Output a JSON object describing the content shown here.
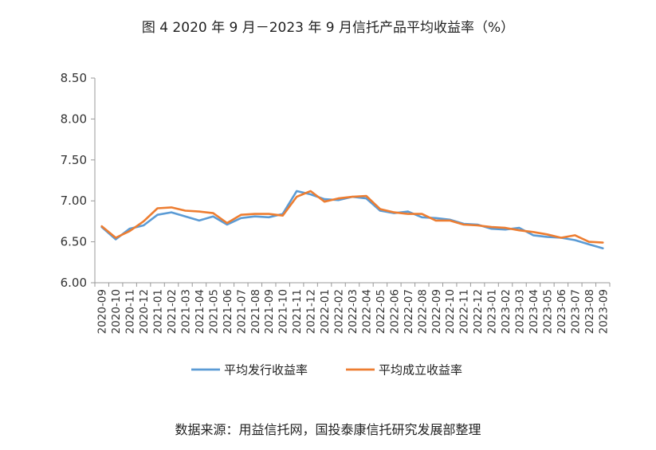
{
  "title": "图 4   2020 年 9 月－2023 年 9 月信托产品平均收益率（%）",
  "source_note": "数据来源：用益信托网，国投泰康信托研究发展部整理",
  "colors": {
    "series_1": "#5b9bd5",
    "series_2": "#ed7d31",
    "axis": "#999999",
    "tick_text": "#333333"
  },
  "chart_data": {
    "type": "line",
    "title": "图 4   2020 年 9 月－2023 年 9 月信托产品平均收益率（%）",
    "xlabel": "",
    "ylabel": "",
    "ylim": [
      6.0,
      8.5
    ],
    "yticks": [
      "6.00",
      "6.50",
      "7.00",
      "7.50",
      "8.00",
      "8.50"
    ],
    "grid": false,
    "legend_position": "bottom",
    "x": [
      "2020-09",
      "2020-10",
      "2020-11",
      "2020-12",
      "2021-01",
      "2021-02",
      "2021-03",
      "2021-04",
      "2021-05",
      "2021-06",
      "2021-07",
      "2021-08",
      "2021-09",
      "2021-10",
      "2021-11",
      "2021-12",
      "2022-01",
      "2022-02",
      "2022-03",
      "2022-04",
      "2022-05",
      "2022-06",
      "2022-07",
      "2022-08",
      "2022-09",
      "2022-10",
      "2022-11",
      "2022-12",
      "2023-01",
      "2023-02",
      "2023-03",
      "2023-04",
      "2023-05",
      "2023-06",
      "2023-07",
      "2023-08",
      "2023-09"
    ],
    "series": [
      {
        "name": "平均发行收益率",
        "values": [
          6.68,
          6.53,
          6.66,
          6.7,
          6.83,
          6.86,
          6.81,
          6.76,
          6.81,
          6.71,
          6.79,
          6.81,
          6.8,
          6.84,
          7.12,
          7.08,
          7.02,
          7.01,
          7.05,
          7.03,
          6.88,
          6.85,
          6.87,
          6.8,
          6.79,
          6.77,
          6.72,
          6.71,
          6.66,
          6.65,
          6.67,
          6.58,
          6.56,
          6.55,
          6.52,
          6.47,
          6.42
        ]
      },
      {
        "name": "平均成立收益率",
        "values": [
          6.69,
          6.55,
          6.63,
          6.75,
          6.91,
          6.92,
          6.88,
          6.87,
          6.85,
          6.73,
          6.83,
          6.84,
          6.84,
          6.82,
          7.05,
          7.12,
          6.99,
          7.03,
          7.05,
          7.06,
          6.9,
          6.86,
          6.84,
          6.84,
          6.76,
          6.76,
          6.71,
          6.7,
          6.68,
          6.67,
          6.64,
          6.62,
          6.59,
          6.55,
          6.58,
          6.5,
          6.49
        ]
      }
    ]
  }
}
